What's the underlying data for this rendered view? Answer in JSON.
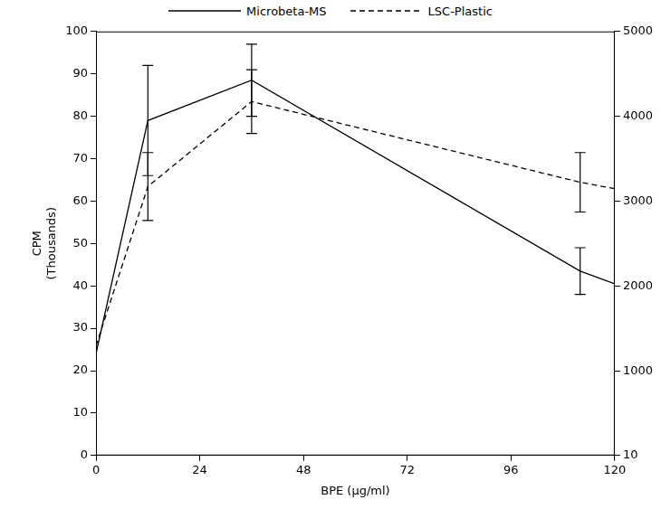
{
  "chart_data": {
    "type": "line",
    "x_label": "BPE (µg/ml)",
    "y_label": [
      "CPM",
      "(Thousands)"
    ],
    "x": [
      0,
      12,
      36,
      112,
      120
    ],
    "xlim": [
      0,
      120
    ],
    "xticks": [
      0,
      24,
      48,
      72,
      96,
      120
    ],
    "ylim": [
      0,
      100
    ],
    "yticks": [
      0,
      10,
      20,
      30,
      40,
      50,
      60,
      70,
      80,
      90,
      100
    ],
    "y2lim": [
      10,
      5000
    ],
    "y2ticks": [
      10,
      1000,
      2000,
      3000,
      4000,
      5000
    ],
    "grid": false,
    "legend": "top",
    "series": [
      {
        "name": "Microbeta-MS",
        "color": "#000000",
        "line_style": "solid",
        "values": [
          24,
          79,
          88.5,
          43.5,
          40.5
        ],
        "errors": [
          null,
          13,
          8.5,
          5.5,
          null
        ]
      },
      {
        "name": "LSC-Plastic",
        "color": "#000000",
        "line_style": "dashed",
        "axis": "y2",
        "values": [
          1300,
          3175,
          4175,
          3225,
          3150
        ],
        "errors": [
          null,
          400,
          375,
          350,
          null
        ]
      }
    ]
  }
}
